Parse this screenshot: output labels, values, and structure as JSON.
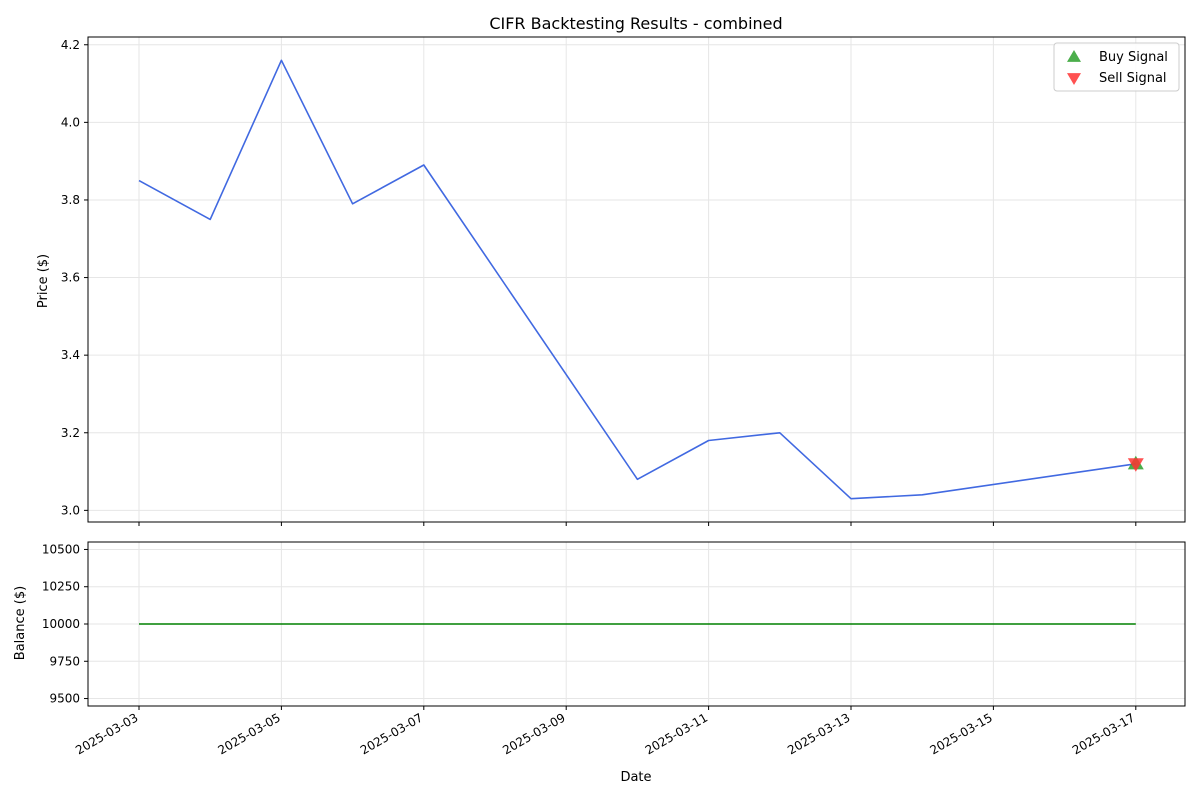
{
  "chart_data": {
    "type": "line",
    "title": "CIFR Backtesting Results - combined",
    "shared_xlabel": "Date",
    "x_ticks": [
      "2025-03-03",
      "2025-03-05",
      "2025-03-07",
      "2025-03-09",
      "2025-03-11",
      "2025-03-13",
      "2025-03-15",
      "2025-03-17"
    ],
    "grid": true,
    "panels": [
      {
        "name": "price",
        "ylabel": "Price ($)",
        "ylim": [
          2.97,
          4.22
        ],
        "y_ticks": [
          "3.0",
          "3.2",
          "3.4",
          "3.6",
          "3.8",
          "4.0",
          "4.2"
        ],
        "series": [
          {
            "color": "#4169e1",
            "x": [
              "2025-03-03",
              "2025-03-04",
              "2025-03-05",
              "2025-03-06",
              "2025-03-07",
              "2025-03-10",
              "2025-03-11",
              "2025-03-12",
              "2025-03-13",
              "2025-03-14",
              "2025-03-17"
            ],
            "y": [
              3.85,
              3.75,
              4.16,
              3.79,
              3.89,
              3.08,
              3.18,
              3.2,
              3.03,
              3.04,
              3.12
            ]
          }
        ],
        "markers": [
          {
            "name": "Buy Signal",
            "shape": "triangle-up",
            "color": "#2ca02c",
            "x": "2025-03-17",
            "y": 3.12
          },
          {
            "name": "Sell Signal",
            "shape": "triangle-down",
            "color": "#ff3333",
            "x": "2025-03-17",
            "y": 3.12
          }
        ],
        "legend": {
          "placement": "top-right",
          "entries": [
            {
              "label": "Buy Signal",
              "shape": "triangle-up",
              "color": "#2ca02c"
            },
            {
              "label": "Sell Signal",
              "shape": "triangle-down",
              "color": "#ff3333"
            }
          ]
        }
      },
      {
        "name": "balance",
        "ylabel": "Balance ($)",
        "ylim": [
          9450,
          10550
        ],
        "y_ticks": [
          "9500",
          "9750",
          "10000",
          "10250",
          "10500"
        ],
        "series": [
          {
            "color": "#008000",
            "x": [
              "2025-03-03",
              "2025-03-17"
            ],
            "y": [
              10000,
              10000
            ]
          }
        ]
      }
    ]
  }
}
